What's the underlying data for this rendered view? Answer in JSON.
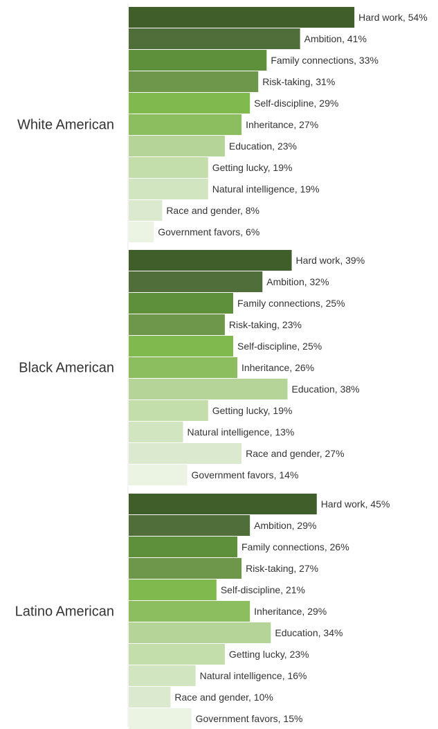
{
  "chart_data": {
    "type": "bar",
    "orientation": "horizontal",
    "grouped_by": "category",
    "categories": [
      "Hard work",
      "Ambition",
      "Family connections",
      "Risk-taking",
      "Self-discipline",
      "Inheritance",
      "Education",
      "Getting lucky",
      "Natural intelligence",
      "Race and gender",
      "Government favors"
    ],
    "bar_labels": [
      [
        "Hard work, 54%",
        "Ambition, 41%",
        "Family connections, 33%",
        "Risk-taking, 31%",
        "Self-discipline,  29%",
        "Inheritance, 27%",
        "Education, 23%",
        "Getting lucky, 19%",
        "Natural intelligence, 19%",
        "Race and gender, 8%",
        "Government favors, 6%"
      ],
      [
        "Hard work, 39%",
        "Ambition, 32%",
        "Family connections, 25%",
        "Risk-taking, 23%",
        "Self-discipline,  25%",
        "Inheritance, 26%",
        "Education, 38%",
        "Getting lucky, 19%",
        "Natural intelligence, 13%",
        "Race and gender, 27%",
        "Government favors, 14%"
      ],
      [
        "Hard work, 45%",
        "Ambition, 29%",
        "Family connections, 26%",
        "Risk-taking, 27%",
        "Self-discipline,  21%",
        "Inheritance, 29%",
        "Education, 34%",
        "Getting lucky, 23%",
        "Natural intelligence, 16%",
        "Race and gender, 10%",
        "Government favors, 15%"
      ]
    ],
    "series": [
      {
        "name": "White American",
        "values": [
          54,
          41,
          33,
          31,
          29,
          27,
          23,
          19,
          19,
          8,
          6
        ]
      },
      {
        "name": "Black American",
        "values": [
          39,
          32,
          25,
          23,
          25,
          26,
          38,
          19,
          13,
          27,
          14
        ]
      },
      {
        "name": "Latino American",
        "values": [
          45,
          29,
          26,
          27,
          21,
          29,
          34,
          23,
          16,
          10,
          15
        ]
      }
    ],
    "value_unit": "%",
    "colors": [
      "#3f5e2a",
      "#4f6e3a",
      "#5e8f3a",
      "#6f974b",
      "#80b94e",
      "#8cbd5f",
      "#b4d597",
      "#c3ddab",
      "#d1e5c1",
      "#dbeacf",
      "#ebf3e3"
    ],
    "separator_color": "#e8e8e8",
    "legend": "none",
    "grid": false
  }
}
